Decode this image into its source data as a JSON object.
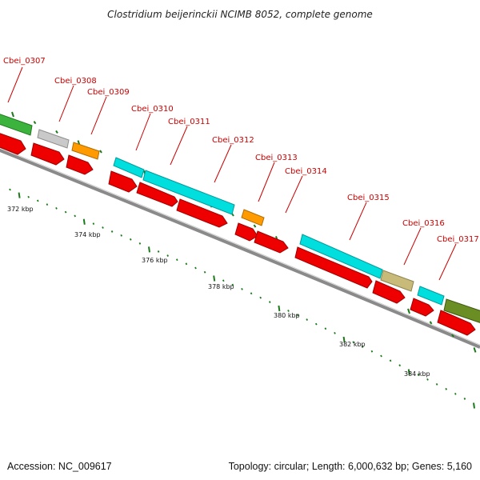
{
  "title": "Clostridium beijerinckii NCIMB 8052, complete genome",
  "footer": {
    "accession": "Accession: NC_009617",
    "summary": "Topology: circular; Length: 6,000,632 bp; Genes: 5,160"
  },
  "colors": {
    "label_red": "#cc0000",
    "backbone": "#808080",
    "tick_green": "#006400",
    "cds_red": "#ee0000",
    "cyan": "#00d8d8",
    "green": "#2fae2f",
    "grey": "#c8c8c8",
    "orange": "#ff9900",
    "khaki": "#c8bb7a",
    "olive": "#6a8e23"
  },
  "genes": [
    {
      "label": "Cbei_0307"
    },
    {
      "label": "Cbei_0308"
    },
    {
      "label": "Cbei_0309"
    },
    {
      "label": "Cbei_0310"
    },
    {
      "label": "Cbei_0311"
    },
    {
      "label": "Cbei_0312"
    },
    {
      "label": "Cbei_0313"
    },
    {
      "label": "Cbei_0314"
    },
    {
      "label": "Cbei_0315"
    },
    {
      "label": "Cbei_0316"
    },
    {
      "label": "Cbei_0317"
    }
  ],
  "kbp_labels": [
    "372 kbp",
    "374 kbp",
    "376 kbp",
    "378 kbp",
    "380 kbp",
    "382 kbp",
    "384 kbp"
  ]
}
